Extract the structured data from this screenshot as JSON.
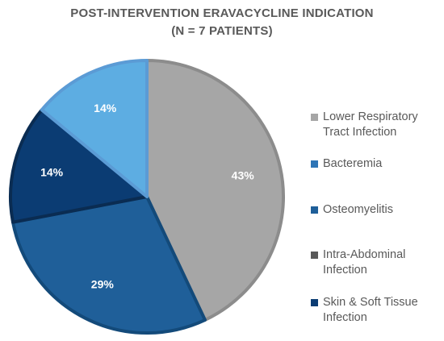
{
  "chart_data": {
    "type": "pie",
    "title_lines": [
      "POST-INTERVENTION ERAVACYCLINE INDICATION",
      "(N = 7 PATIENTS)"
    ],
    "slices": [
      {
        "label": "Lower Respiratory Tract Infection",
        "value": 43,
        "value_label": "43%",
        "color": "#a6a6a6",
        "border": "#8c8c8c"
      },
      {
        "label": "Bacteremia",
        "value": 0,
        "value_label": "",
        "color": "#2e75b6",
        "border": "#2e75b6"
      },
      {
        "label": "Osteomyelitis",
        "value": 29,
        "value_label": "29%",
        "color": "#1f5f99",
        "border": "#134a7a"
      },
      {
        "label": "Intra-Abdominal Infection",
        "value": 0,
        "value_label": "",
        "color": "#595959",
        "border": "#595959"
      },
      {
        "label": "Skin & Soft Tissue Infection",
        "value": 14,
        "value_label": "14%",
        "color": "#0b3c73",
        "border": "#0a2c52"
      },
      {
        "label": "",
        "value": 14,
        "value_label": "14%",
        "color": "#5dade2",
        "border": "#5b9bd5"
      }
    ],
    "legend": [
      {
        "lines": [
          "Lower Respiratory",
          "Tract Infection"
        ],
        "color": "#a6a6a6"
      },
      {
        "lines": [
          "Bacteremia"
        ],
        "color": "#2e75b6"
      },
      {
        "lines": [
          "Osteomyelitis"
        ],
        "color": "#1f5f99"
      },
      {
        "lines": [
          "Intra-Abdominal",
          "Infection"
        ],
        "color": "#595959"
      },
      {
        "lines": [
          "Skin & Soft Tissue",
          "Infection"
        ],
        "color": "#0b3c73"
      }
    ],
    "legend_position": "right"
  }
}
